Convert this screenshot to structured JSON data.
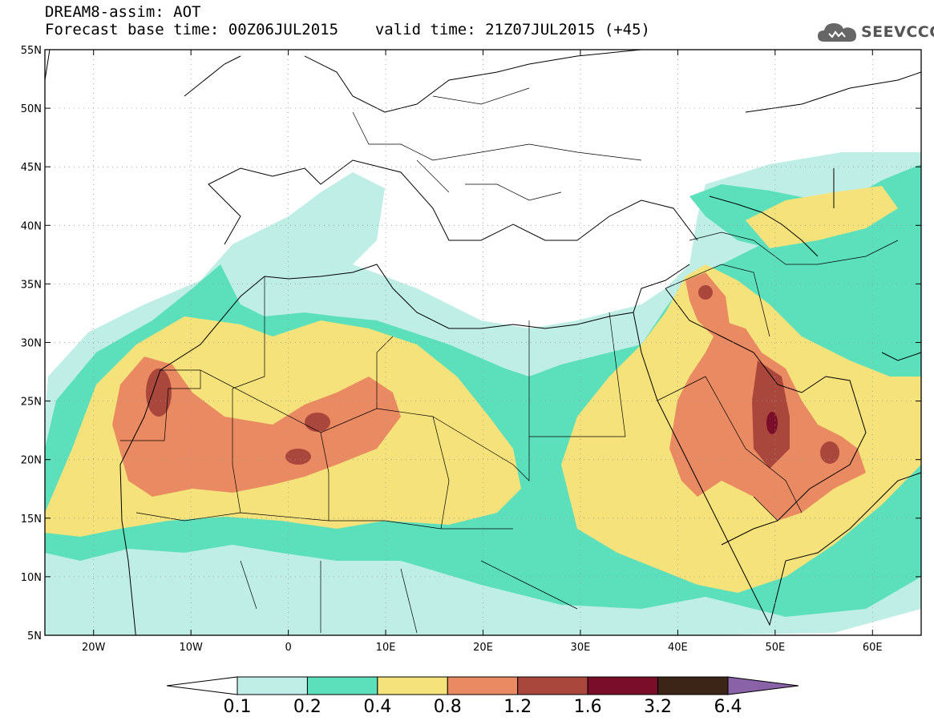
{
  "header": {
    "title": "DREAM8-assim: AOT",
    "base_time": "Forecast base time: 00Z06JUL2015",
    "valid_time": "valid time: 21Z07JUL2015 (+45)"
  },
  "logo": {
    "text": "SEEVCCC",
    "icon": "cloud-icon"
  },
  "map": {
    "lon_range": [
      -25,
      65
    ],
    "lat_range": [
      5,
      55
    ],
    "lon_ticks": [
      {
        "value": -20,
        "label": "20W"
      },
      {
        "value": -10,
        "label": "10W"
      },
      {
        "value": 0,
        "label": "0"
      },
      {
        "value": 10,
        "label": "10E"
      },
      {
        "value": 20,
        "label": "20E"
      },
      {
        "value": 30,
        "label": "30E"
      },
      {
        "value": 40,
        "label": "40E"
      },
      {
        "value": 50,
        "label": "50E"
      },
      {
        "value": 60,
        "label": "60E"
      }
    ],
    "lat_ticks": [
      {
        "value": 55,
        "label": "55N"
      },
      {
        "value": 50,
        "label": "50N"
      },
      {
        "value": 45,
        "label": "45N"
      },
      {
        "value": 40,
        "label": "40N"
      },
      {
        "value": 35,
        "label": "35N"
      },
      {
        "value": 30,
        "label": "30N"
      },
      {
        "value": 25,
        "label": "25N"
      },
      {
        "value": 20,
        "label": "20N"
      },
      {
        "value": 15,
        "label": "15N"
      },
      {
        "value": 10,
        "label": "10N"
      },
      {
        "value": 5,
        "label": "5N"
      }
    ],
    "grid": "dotted"
  },
  "colorbar": {
    "levels": [
      "0.1",
      "0.2",
      "0.4",
      "0.8",
      "1.2",
      "1.6",
      "3.2",
      "6.4"
    ],
    "colors": [
      "#ffffff",
      "#bfeee6",
      "#5ce0bc",
      "#f6e27a",
      "#e98a62",
      "#a9473c",
      "#7a0d2a",
      "#3c2416",
      "#8a62a8"
    ]
  }
}
